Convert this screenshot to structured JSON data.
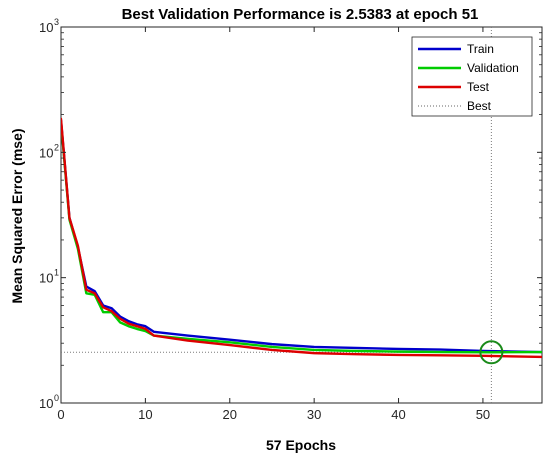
{
  "chart_data": {
    "type": "line",
    "title": "Best Validation Performance is 2.5383 at epoch 51",
    "xlabel": "57 Epochs",
    "ylabel": "Mean Squared Error  (mse)",
    "xlim": [
      0,
      57
    ],
    "ylim": [
      1,
      1000
    ],
    "yscale": "log",
    "x_ticks": [
      0,
      10,
      20,
      30,
      40,
      50
    ],
    "y_ticks": [
      {
        "value": 1,
        "base": "10",
        "exp": "0"
      },
      {
        "value": 10,
        "base": "10",
        "exp": "1"
      },
      {
        "value": 100,
        "base": "10",
        "exp": "2"
      },
      {
        "value": 1000,
        "base": "10",
        "exp": "3"
      }
    ],
    "grid": false,
    "legend_position": "top-right",
    "legend": [
      "Train",
      "Validation",
      "Test",
      "Best"
    ],
    "best": {
      "epoch": 51,
      "value": 2.5383,
      "color": "#1a8a1a"
    },
    "series": [
      {
        "name": "Train",
        "color": "#0000cc",
        "x": [
          0,
          1,
          2,
          3,
          4,
          5,
          6,
          7,
          8,
          9,
          10,
          11,
          15,
          20,
          25,
          30,
          35,
          40,
          45,
          50,
          57
        ],
        "y": [
          180,
          30,
          17.5,
          8.5,
          7.8,
          6.0,
          5.7,
          4.9,
          4.5,
          4.25,
          4.1,
          3.7,
          3.45,
          3.2,
          2.95,
          2.8,
          2.75,
          2.7,
          2.67,
          2.6,
          2.55
        ]
      },
      {
        "name": "Validation",
        "color": "#00cc00",
        "x": [
          0,
          1,
          2,
          3,
          4,
          5,
          6,
          7,
          8,
          9,
          10,
          11,
          15,
          20,
          25,
          30,
          35,
          40,
          45,
          51,
          57
        ],
        "y": [
          175,
          29,
          17,
          7.5,
          7.3,
          5.3,
          5.3,
          4.4,
          4.1,
          3.9,
          3.75,
          3.45,
          3.25,
          3.05,
          2.8,
          2.65,
          2.6,
          2.57,
          2.55,
          2.5383,
          2.55
        ]
      },
      {
        "name": "Test",
        "color": "#dd0000",
        "x": [
          0,
          1,
          2,
          3,
          4,
          5,
          6,
          7,
          8,
          9,
          10,
          11,
          15,
          20,
          25,
          30,
          35,
          40,
          45,
          50,
          57
        ],
        "y": [
          185,
          30,
          18,
          8.0,
          7.5,
          5.8,
          5.4,
          4.7,
          4.3,
          4.1,
          3.9,
          3.45,
          3.15,
          2.9,
          2.65,
          2.5,
          2.45,
          2.42,
          2.4,
          2.38,
          2.33
        ]
      }
    ]
  }
}
